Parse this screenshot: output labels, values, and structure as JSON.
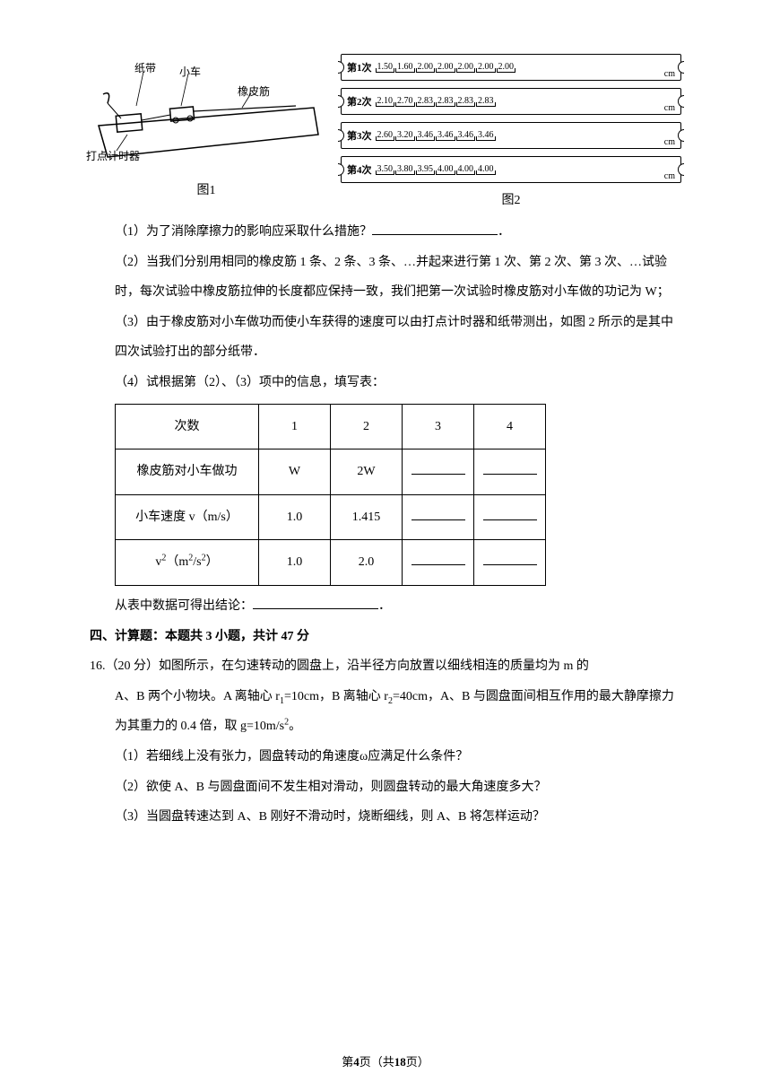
{
  "fig1": {
    "labels": {
      "tape": "纸带",
      "cart": "小车",
      "rubber": "橡皮筋",
      "timer": "打点计时器"
    },
    "caption": "图1"
  },
  "fig2": {
    "tapes": [
      {
        "label": "第1次",
        "values": [
          "1.50",
          "1.60",
          "2.00",
          "2.00",
          "2.00",
          "2.00",
          "2.00"
        ]
      },
      {
        "label": "第2次",
        "values": [
          "2.10",
          "2.70",
          "2.83",
          "2.83",
          "2.83",
          "2.83"
        ]
      },
      {
        "label": "第3次",
        "values": [
          "2.60",
          "3.20",
          "3.46",
          "3.46",
          "3.46",
          "3.46"
        ]
      },
      {
        "label": "第4次",
        "values": [
          "3.50",
          "3.80",
          "3.95",
          "4.00",
          "4.00",
          "4.00"
        ]
      }
    ],
    "unit": "cm",
    "caption": "图2"
  },
  "q1": "（1）为了消除摩擦力的影响应采取什么措施？",
  "q1_tail": "．",
  "q2": "（2）当我们分别用相同的橡皮筋 1 条、2 条、3 条、…并起来进行第 1 次、第 2 次、第 3 次、…试验时，每次试验中橡皮筋拉伸的长度都应保持一致，我们把第一次试验时橡皮筋对小车做的功记为 W；",
  "q3": "（3）由于橡皮筋对小车做功而使小车获得的速度可以由打点计时器和纸带测出，如图 2 所示的是其中四次试验打出的部分纸带．",
  "q4": "（4）试根据第（2）、（3）项中的信息，填写表：",
  "table": {
    "headers": [
      "次数",
      "1",
      "2",
      "3",
      "4"
    ],
    "rows": [
      {
        "label": "橡皮筋对小车做功",
        "c1": "W",
        "c2": "2W",
        "c3": "",
        "c4": ""
      },
      {
        "label": "小车速度 v（m/s）",
        "c1": "1.0",
        "c2": "1.415",
        "c3": "",
        "c4": ""
      },
      {
        "label": "v²（m²/s²）",
        "c1": "1.0",
        "c2": "2.0",
        "c3": "",
        "c4": ""
      }
    ]
  },
  "conclusion_prefix": "从表中数据可得出结论：",
  "conclusion_tail": "．",
  "section4": "四、计算题：本题共 3 小题，共计 47 分",
  "p16_intro": "16.（20 分）如图所示，在匀速转动的圆盘上，沿半径方向放置以细线相连的质量均为 m 的",
  "p16_line2": "A、B 两个小物块。A 离轴心 r₁=10cm，B 离轴心 r₂=40cm，A、B 与圆盘面间相互作用的最大静摩擦力为其重力的 0.4 倍，取 g=10m/s²。",
  "p16_q1": "（1）若细线上没有张力，圆盘转动的角速度ω应满足什么条件？",
  "p16_q2": "（2）欲使 A、B 与圆盘面间不发生相对滑动，则圆盘转动的最大角速度多大？",
  "p16_q3": "（3）当圆盘转速达到 A、B 刚好不滑动时，烧断细线，则 A、B 将怎样运动？",
  "footer": {
    "prefix": "第",
    "page": "4",
    "mid": "页（共",
    "total": "18",
    "suffix": "页）"
  }
}
